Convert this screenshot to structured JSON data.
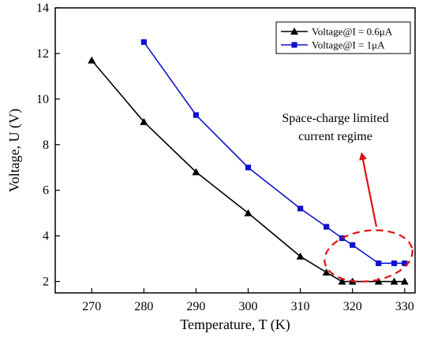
{
  "chart_data": {
    "type": "line",
    "xlabel": "Temperature, T (K)",
    "ylabel": "Voltage, U (V)",
    "xlim": [
      263,
      332
    ],
    "ylim": [
      1.5,
      14
    ],
    "xticks": [
      270,
      280,
      290,
      300,
      310,
      320,
      330
    ],
    "yticks": [
      2,
      4,
      6,
      8,
      10,
      12,
      14
    ],
    "grid": false,
    "legend_position": "top-right",
    "series": [
      {
        "name": "Voltage@I = 0.6μA",
        "color": "#000000",
        "marker": "triangle",
        "x": [
          270,
          280,
          290,
          300,
          310,
          315,
          318,
          320,
          325,
          328,
          330
        ],
        "y": [
          11.7,
          9.0,
          6.8,
          5.0,
          3.1,
          2.4,
          2.0,
          2.0,
          2.0,
          2.0,
          2.0
        ]
      },
      {
        "name": "Voltage@I = 1μA",
        "color": "#1010d0",
        "marker": "square",
        "x": [
          280,
          290,
          300,
          310,
          315,
          318,
          320,
          325,
          328,
          330
        ],
        "y": [
          12.5,
          9.3,
          7.0,
          5.2,
          4.4,
          3.9,
          3.6,
          2.8,
          2.8,
          2.8
        ]
      }
    ],
    "annotation": {
      "lines": [
        "Space-charge limited",
        "current regime"
      ],
      "color": "#dd1111"
    }
  }
}
